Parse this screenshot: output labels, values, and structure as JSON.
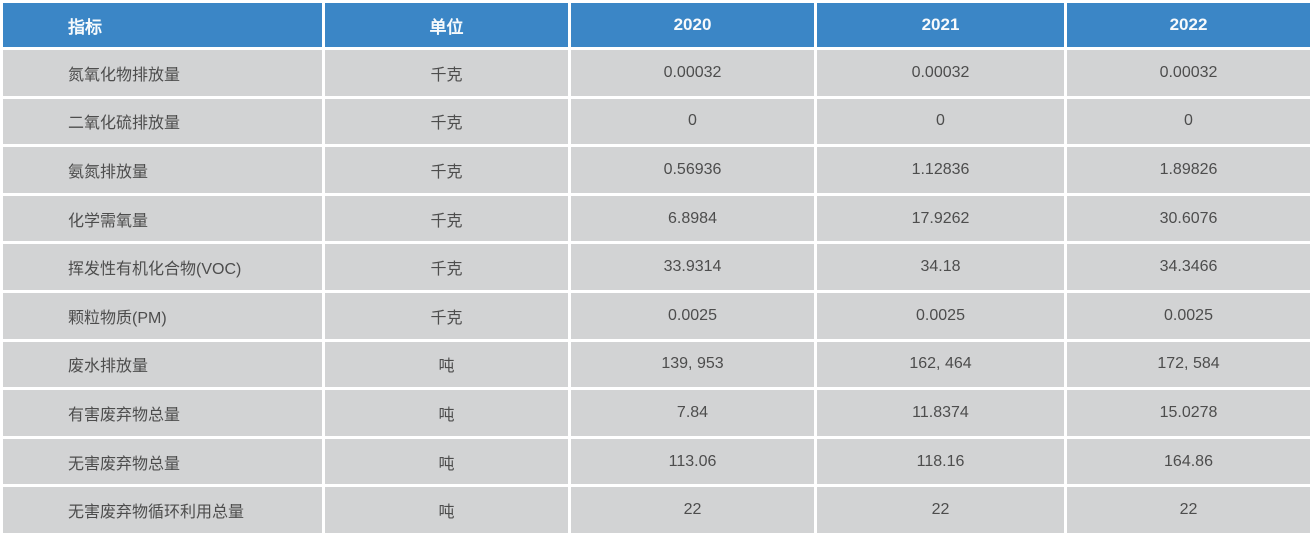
{
  "colors": {
    "header_bg": "#3b86c6",
    "header_text": "#f7fafc",
    "row_bg": "#d2d3d4",
    "body_text": "#4d4d4d",
    "separator": "#ffffff"
  },
  "table": {
    "columns": [
      "指标",
      "单位",
      "2020",
      "2021",
      "2022"
    ],
    "rows": [
      {
        "indicator": "氮氧化物排放量",
        "unit": "千克",
        "values": [
          "0.00032",
          "0.00032",
          "0.00032"
        ]
      },
      {
        "indicator": "二氧化硫排放量",
        "unit": "千克",
        "values": [
          "0",
          "0",
          "0"
        ]
      },
      {
        "indicator": "氨氮排放量",
        "unit": "千克",
        "values": [
          "0.56936",
          "1.12836",
          "1.89826"
        ]
      },
      {
        "indicator": "化学需氧量",
        "unit": "千克",
        "values": [
          "6.8984",
          "17.9262",
          "30.6076"
        ]
      },
      {
        "indicator": "挥发性有机化合物(VOC)",
        "unit": "千克",
        "values": [
          "33.9314",
          "34.18",
          "34.3466"
        ]
      },
      {
        "indicator": "颗粒物质(PM)",
        "unit": "千克",
        "values": [
          "0.0025",
          "0.0025",
          "0.0025"
        ]
      },
      {
        "indicator": "废水排放量",
        "unit": "吨",
        "values": [
          "139, 953",
          "162, 464",
          "172, 584"
        ]
      },
      {
        "indicator": "有害废弃物总量",
        "unit": "吨",
        "values": [
          "7.84",
          "11.8374",
          "15.0278"
        ]
      },
      {
        "indicator": "无害废弃物总量",
        "unit": "吨",
        "values": [
          "113.06",
          "118.16",
          "164.86"
        ]
      },
      {
        "indicator": "无害废弃物循环利用总量",
        "unit": "吨",
        "values": [
          "22",
          "22",
          "22"
        ]
      }
    ]
  }
}
